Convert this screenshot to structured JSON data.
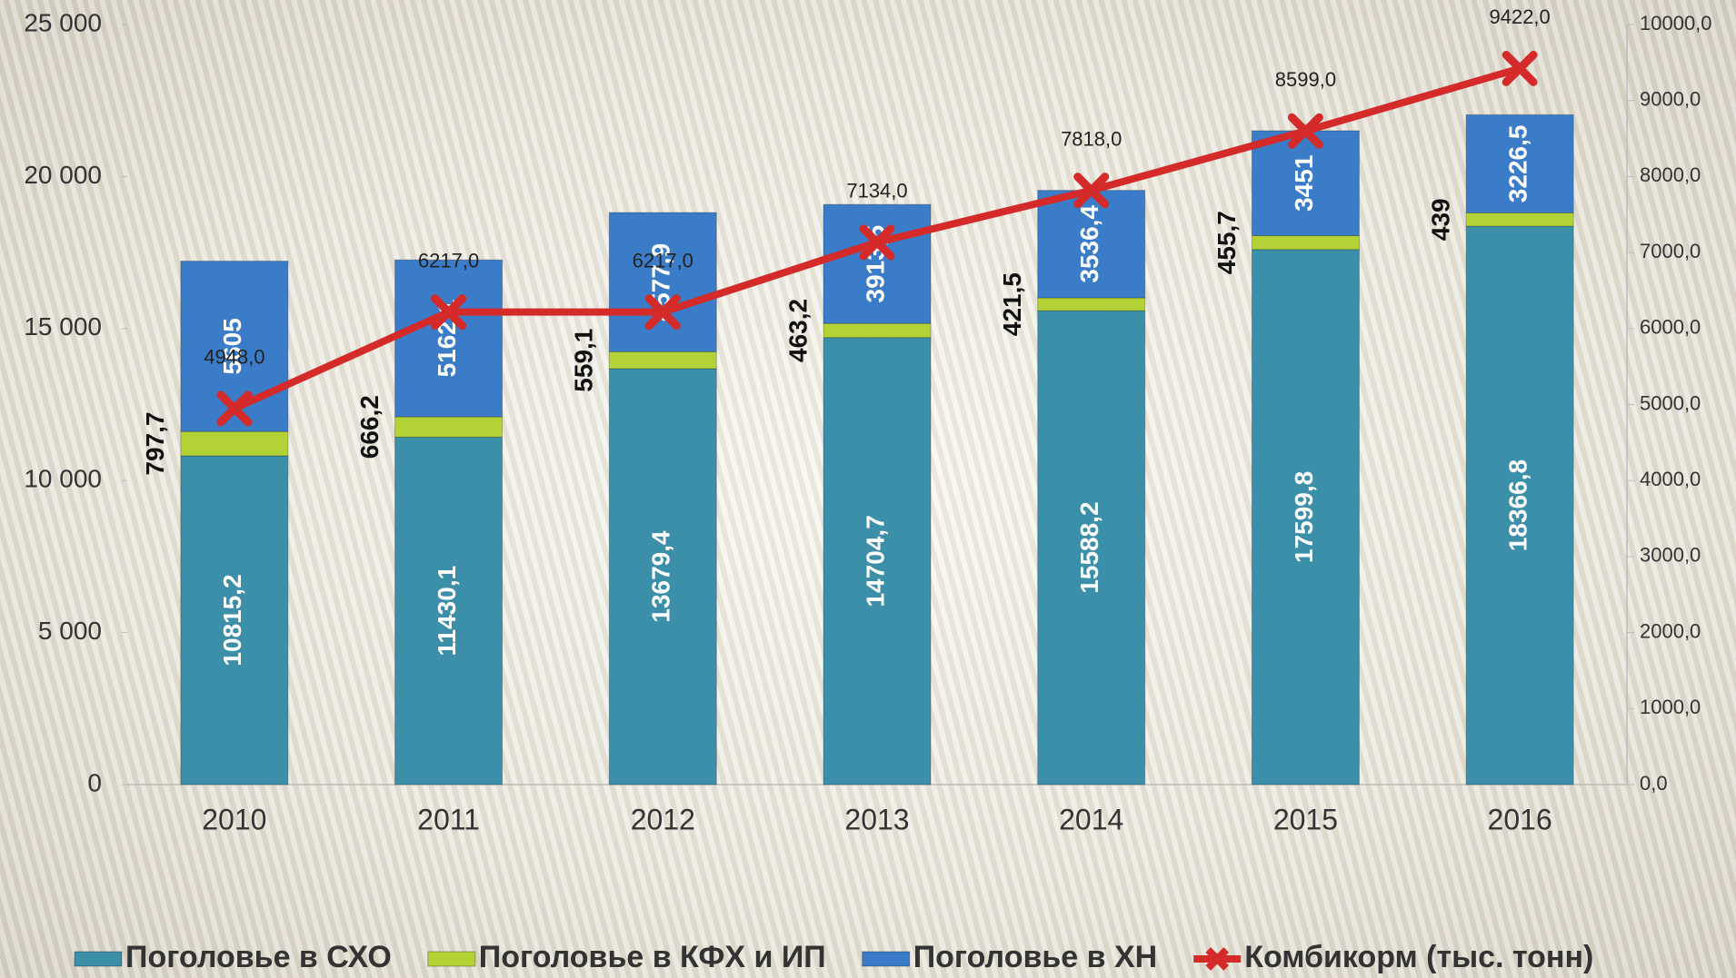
{
  "chart_data": {
    "type": "stacked-bar-line",
    "categories": [
      "2010",
      "2011",
      "2012",
      "2013",
      "2014",
      "2015",
      "2016"
    ],
    "series": [
      {
        "name": "Поголовье в СХО",
        "color": "#3b8fa9",
        "values": [
          10815.2,
          11430.1,
          13679.4,
          14704.7,
          15588.2,
          17599.8,
          18366.8
        ],
        "value_labels": [
          "10815,2",
          "11430,1",
          "13679,4",
          "14704,7",
          "15588,2",
          "17599,8",
          "18366,8"
        ]
      },
      {
        "name": "Поголовье в КФХ и ИП",
        "color": "#b3d236",
        "values": [
          797.7,
          666.2,
          559.1,
          463.2,
          421.5,
          455.7,
          439
        ],
        "value_labels": [
          "797,7",
          "666,2",
          "559,1",
          "463,2",
          "421,5",
          "455,7",
          "439"
        ]
      },
      {
        "name": "Поголовье в ХН",
        "color": "#3a7cc7",
        "values": [
          5605,
          5162.1,
          4577.9,
          3913.5,
          3536.4,
          3451,
          3226.5
        ],
        "value_labels": [
          "5605",
          "5162,1",
          "4577,9",
          "3913,5",
          "3536,4",
          "3451",
          "3226,5"
        ]
      },
      {
        "name": "Комбикорм (тыс. тонн)",
        "color": "#d42a2a",
        "axis": "y2",
        "values": [
          4948,
          6217,
          6217,
          7134,
          7818,
          8599,
          9422
        ],
        "value_labels": [
          "4948,0",
          "6217,0",
          "6217,0",
          "7134,0",
          "7818,0",
          "8599,0",
          "9422,0"
        ]
      }
    ],
    "ylim": [
      0,
      25000
    ],
    "yticks": [
      0,
      {
        "value": 5000,
        "label": "5 000"
      },
      {
        "value": 10000,
        "label": "10 000"
      },
      {
        "value": 15000,
        "label": "15 000"
      },
      {
        "value": 20000,
        "label": "20 000"
      },
      {
        "value": 25000,
        "label": "25 000"
      }
    ],
    "y2lim": [
      0,
      10000
    ],
    "y2ticks": [
      {
        "value": 0,
        "label": "0,0"
      },
      {
        "value": 1000,
        "label": "1000,0"
      },
      {
        "value": 2000,
        "label": "2000,0"
      },
      {
        "value": 3000,
        "label": "3000,0"
      },
      {
        "value": 4000,
        "label": "4000,0"
      },
      {
        "value": 5000,
        "label": "5000,0"
      },
      {
        "value": 6000,
        "label": "6000,0"
      },
      {
        "value": 7000,
        "label": "7000,0"
      },
      {
        "value": 8000,
        "label": "8000,0"
      },
      {
        "value": 9000,
        "label": "9000,0"
      },
      {
        "value": 10000,
        "label": "10000,0"
      }
    ],
    "legend": "bottom"
  }
}
